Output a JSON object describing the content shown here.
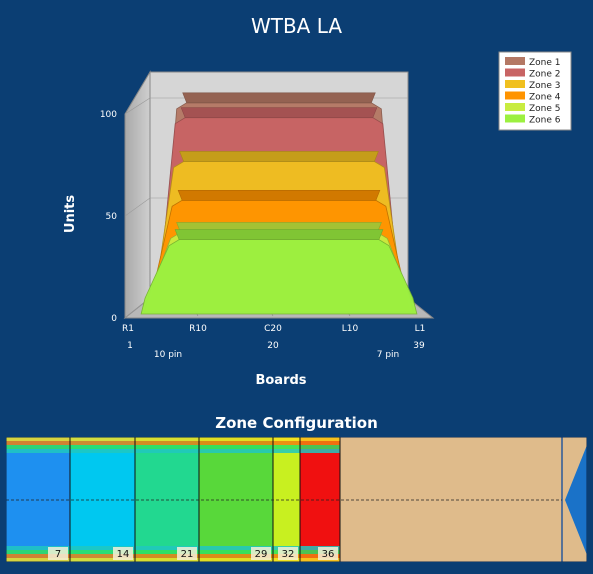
{
  "chart_title": "WTBA LA",
  "zone_config_title": "Zone Configuration",
  "chart_data": {
    "type": "area",
    "title": "WTBA LA",
    "xlabel": "Boards",
    "ylabel": "Units",
    "ylim": [
      0,
      100
    ],
    "y_ticks": [
      "0",
      "50",
      "100"
    ],
    "x_ticks": [
      "R1",
      "R10",
      "C20",
      "L10",
      "L1"
    ],
    "x_subticks": [
      "1",
      "10 pin",
      "20",
      "7 pin",
      "39"
    ],
    "legend_position": "top-right",
    "series": [
      {
        "name": "Zone 1",
        "color": "#b47864",
        "plateau": 100
      },
      {
        "name": "Zone 2",
        "color": "#c86464",
        "plateau": 95
      },
      {
        "name": "Zone 3",
        "color": "#f0c020",
        "plateau": 75
      },
      {
        "name": "Zone 4",
        "color": "#ff9400",
        "plateau": 57
      },
      {
        "name": "Zone 5",
        "color": "#c8ec40",
        "plateau": 42
      },
      {
        "name": "Zone 6",
        "color": "#9cf040",
        "plateau": 40
      }
    ]
  },
  "zone_config": {
    "boundaries": [
      "7",
      "14",
      "21",
      "29",
      "32",
      "36"
    ],
    "zones": [
      {
        "color": "#1e90f0"
      },
      {
        "color": "#00c8f0"
      },
      {
        "color": "#22d890"
      },
      {
        "color": "#58d83a"
      },
      {
        "color": "#c8f020"
      },
      {
        "color": "#f01010"
      }
    ],
    "lane_color": "#dfbb8b",
    "arrow_color": "#1a72c8"
  }
}
